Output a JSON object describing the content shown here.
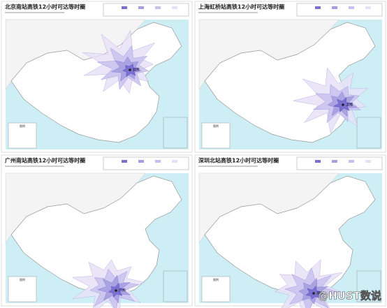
{
  "panels": [
    {
      "title": "北京南站高铁12小时可达等时圈",
      "station": "北京"
    },
    {
      "title": "上海虹桥站高铁12小时可达等时圈",
      "station": "上海"
    },
    {
      "title": "广州南站高铁12小时可达等时圈",
      "station": "广州"
    },
    {
      "title": "深圳北站高铁12小时可达等时圈",
      "station": "深圳"
    }
  ],
  "legend_title": "图例",
  "watermark": "@HUST数说"
}
